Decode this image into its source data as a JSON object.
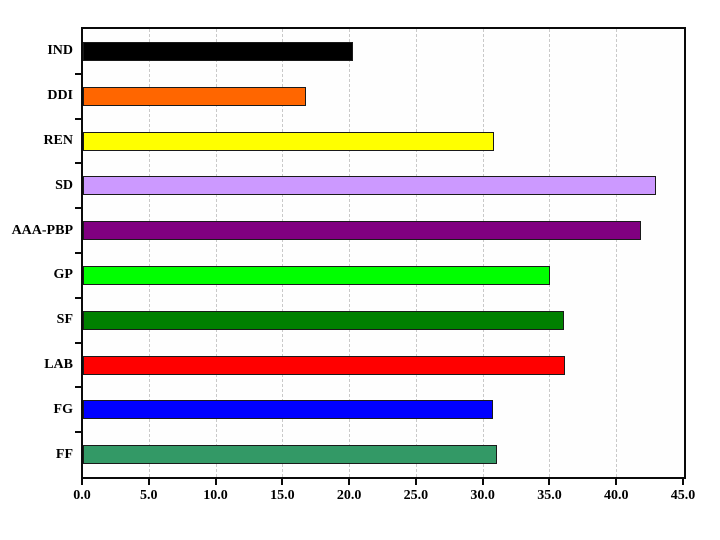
{
  "chart_data": {
    "type": "bar",
    "orientation": "horizontal",
    "title": "",
    "categories": [
      "IND",
      "DDI",
      "REN",
      "SD",
      "AAA-PBP",
      "GP",
      "SF",
      "LAB",
      "FG",
      "FF"
    ],
    "values": [
      20.2,
      16.7,
      30.8,
      42.9,
      41.8,
      35.0,
      36.0,
      36.1,
      30.7,
      31.0
    ],
    "bar_colors": [
      "#000000",
      "#FF6600",
      "#FFFF00",
      "#CC99FF",
      "#800080",
      "#00FF00",
      "#008000",
      "#FF0000",
      "#0000FF",
      "#339966"
    ],
    "xlim": [
      0,
      45
    ],
    "x_ticks": [
      "0.0",
      "5.0",
      "10.0",
      "15.0",
      "20.0",
      "25.0",
      "30.0",
      "35.0",
      "40.0",
      "45.0"
    ],
    "x_tick_values": [
      0,
      5,
      10,
      15,
      20,
      25,
      30,
      35,
      40,
      45
    ],
    "xlabel": "",
    "ylabel": "",
    "legend": "none",
    "grid": "vertical-dashed-major",
    "gridline_color": "#c9c9c9",
    "axis_color": "#0a0a0a",
    "bar_border_color": "#1a1a1a",
    "plot_background": "#fefefe",
    "page_background": "#ffffff"
  }
}
